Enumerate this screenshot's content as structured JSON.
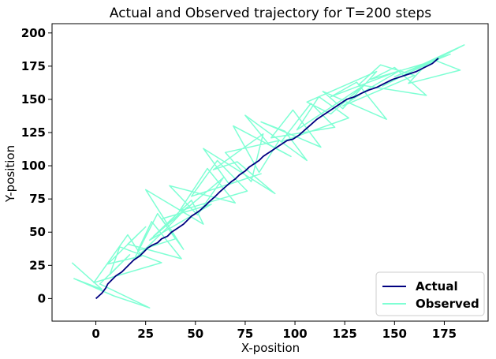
{
  "chart_data": {
    "type": "line",
    "title": "Actual and Observed trajectory for T=200 steps",
    "xlabel": "X-position",
    "ylabel": "Y-position",
    "xlim": [
      -22,
      197
    ],
    "ylim": [
      -17,
      207
    ],
    "xticks": [
      0,
      25,
      50,
      75,
      100,
      125,
      150,
      175
    ],
    "yticks": [
      0,
      25,
      50,
      75,
      100,
      125,
      150,
      175,
      200
    ],
    "grid": false,
    "legend": {
      "position": "lower-right",
      "entries": [
        "Actual",
        "Observed"
      ]
    },
    "series": [
      {
        "name": "Actual",
        "color": "#000080",
        "x": [
          0,
          3,
          5,
          6,
          8,
          10,
          13,
          15,
          17,
          19,
          22,
          24,
          26,
          28,
          31,
          33,
          36,
          38,
          41,
          44,
          46,
          48,
          50,
          52,
          55,
          57,
          60,
          62,
          65,
          68,
          70,
          72,
          75,
          77,
          80,
          82,
          84,
          86,
          88,
          91,
          94,
          96,
          99,
          102,
          105,
          108,
          111,
          114,
          117,
          120,
          123,
          126,
          130,
          134,
          137,
          141,
          145,
          149,
          153,
          157,
          161,
          165,
          169,
          172
        ],
        "y": [
          0,
          4,
          8,
          11,
          14,
          17,
          20,
          23,
          26,
          29,
          32,
          35,
          38,
          40,
          42,
          45,
          47,
          50,
          53,
          56,
          59,
          62,
          64,
          66,
          70,
          73,
          77,
          80,
          84,
          88,
          90,
          93,
          96,
          99,
          102,
          104,
          107,
          109,
          111,
          114,
          117,
          119,
          120,
          123,
          127,
          131,
          135,
          138,
          141,
          144,
          147,
          150,
          152,
          155,
          157,
          159,
          162,
          165,
          167,
          169,
          171,
          174,
          177,
          181
        ]
      },
      {
        "name": "Observed",
        "color": "#7fffd4",
        "x": [
          -12,
          3,
          -11,
          9,
          27,
          2,
          17,
          7,
          12,
          33,
          -1,
          16,
          23,
          6,
          25,
          16,
          43,
          28,
          21,
          40,
          31,
          19,
          35,
          46,
          27,
          58,
          33,
          44,
          25,
          54,
          48,
          29,
          64,
          51,
          37,
          70,
          56,
          42,
          76,
          61,
          48,
          83,
          67,
          54,
          90,
          71,
          59,
          84,
          78,
          65,
          92,
          82,
          69,
          98,
          87,
          75,
          106,
          95,
          83,
          113,
          99,
          88,
          120,
          108,
          93,
          127,
          112,
          101,
          134,
          118,
          106,
          141,
          124,
          114,
          146,
          131,
          118,
          153,
          137,
          124,
          160,
          143,
          132,
          166,
          150,
          138,
          172,
          157,
          144,
          185,
          162,
          150,
          178,
          167,
          157,
          183,
          171
        ],
        "y": [
          27,
          7,
          15,
          2,
          -7,
          11,
          33,
          18,
          39,
          27,
          12,
          48,
          32,
          26,
          54,
          41,
          30,
          58,
          36,
          45,
          64,
          29,
          52,
          69,
          44,
          71,
          60,
          37,
          82,
          56,
          74,
          47,
          91,
          63,
          85,
          72,
          98,
          66,
          81,
          104,
          77,
          94,
          86,
          113,
          79,
          103,
          97,
          124,
          88,
          110,
          119,
          95,
          130,
          107,
          116,
          138,
          104,
          126,
          133,
          114,
          142,
          121,
          129,
          147,
          118,
          136,
          152,
          127,
          160,
          139,
          148,
          171,
          143,
          156,
          135,
          163,
          152,
          172,
          158,
          145,
          168,
          176,
          161,
          153,
          174,
          165,
          180,
          170,
          160,
          191,
          175,
          167,
          184,
          178,
          162,
          172,
          179
        ]
      }
    ]
  }
}
